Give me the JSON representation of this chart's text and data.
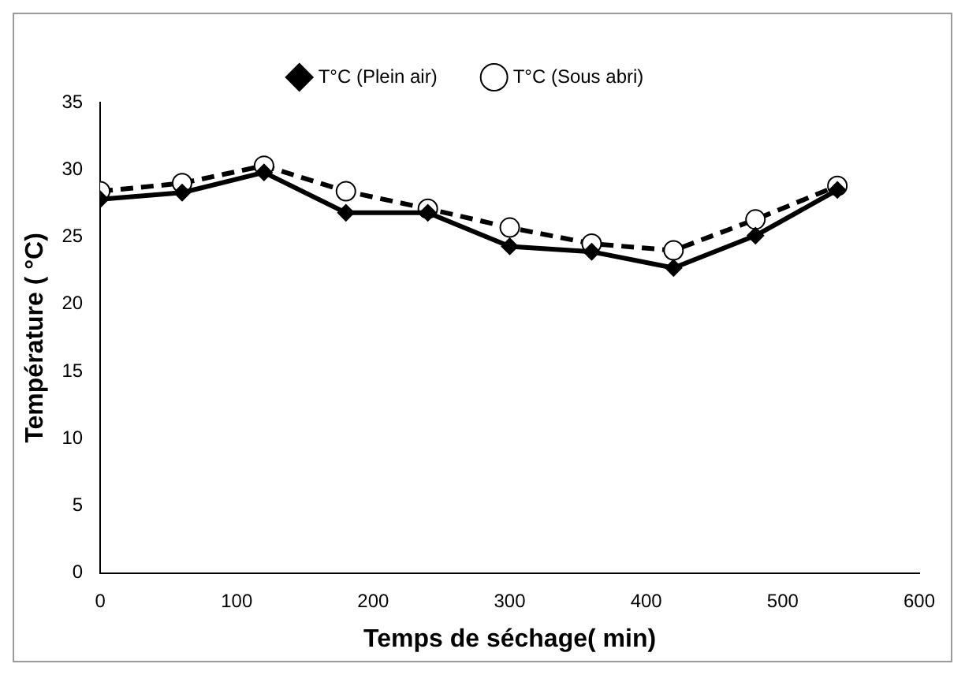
{
  "chart_data": {
    "type": "line",
    "xlabel": "Temps de séchage( min)",
    "ylabel": "Température ( °C)",
    "x": [
      0,
      60,
      120,
      180,
      240,
      300,
      360,
      420,
      480,
      540
    ],
    "series": [
      {
        "name": "T°C (Plein air)",
        "color": "#000000",
        "marker": "diamond",
        "line_style": "solid",
        "values": [
          27.8,
          28.3,
          29.8,
          26.8,
          26.8,
          24.3,
          23.9,
          22.7,
          25.1,
          28.5
        ]
      },
      {
        "name": "T°C (Sous abri)",
        "color": "#000000",
        "marker": "circle",
        "line_style": "dashed",
        "values": [
          28.4,
          29.0,
          30.3,
          28.4,
          27.1,
          25.7,
          24.5,
          24.0,
          26.3,
          28.8
        ]
      }
    ],
    "xlim": [
      0,
      600
    ],
    "xticks": [
      0,
      100,
      200,
      300,
      400,
      500,
      600
    ],
    "ylim": [
      0,
      35
    ],
    "yticks": [
      0,
      5,
      10,
      15,
      20,
      25,
      30,
      35
    ],
    "grid": false,
    "legend": "top"
  }
}
